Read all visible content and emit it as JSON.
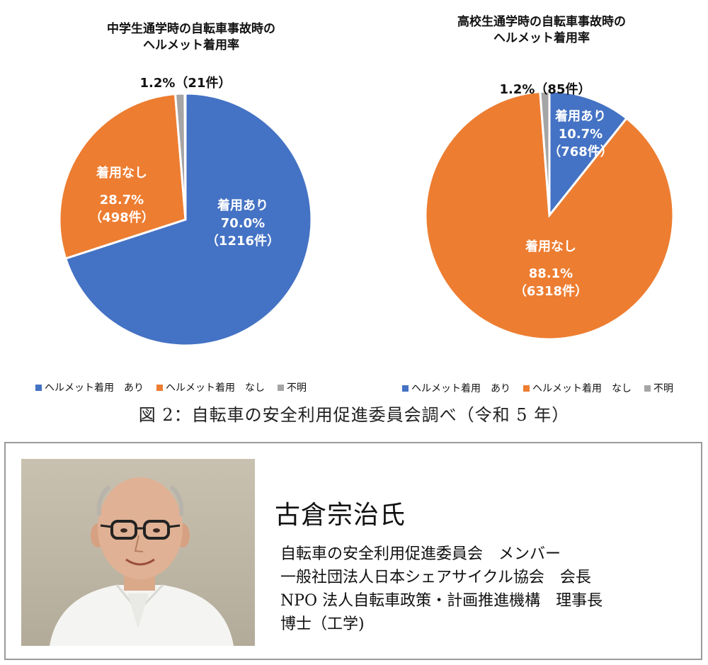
{
  "chart_data": [
    {
      "type": "pie",
      "title_line1": "中学生通学時の自転車事故時の",
      "title_line2": "ヘルメット着用率",
      "slices": [
        {
          "label": "着用あり",
          "percent": 70.0,
          "percent_text": "70.0%",
          "count_text": "（1216件）",
          "color": "#4472C4"
        },
        {
          "label": "着用なし",
          "percent": 28.7,
          "percent_text": "28.7%",
          "count_text": "（498件）",
          "color": "#ED7D31"
        },
        {
          "label": "",
          "percent": 1.2,
          "percent_text": "1.2%",
          "count_text": "（21件）",
          "color": "#A5A5A5"
        }
      ],
      "small_label": "1.2%（21件）",
      "legend": [
        "ヘルメット着用　あり",
        "ヘルメット着用　なし",
        "不明"
      ]
    },
    {
      "type": "pie",
      "title_line1": "高校生通学時の自転車事故時の",
      "title_line2": "ヘルメット着用率",
      "slices": [
        {
          "label": "着用あり",
          "percent": 10.7,
          "percent_text": "10.7%",
          "count_text": "（768件）",
          "color": "#4472C4"
        },
        {
          "label": "着用なし",
          "percent": 88.1,
          "percent_text": "88.1%",
          "count_text": "（6318件）",
          "color": "#ED7D31"
        },
        {
          "label": "",
          "percent": 1.2,
          "percent_text": "1.2%",
          "count_text": "（85件）",
          "color": "#A5A5A5"
        }
      ],
      "small_label": "1.2%（85件）",
      "legend": [
        "ヘルメット着用　あり",
        "ヘルメット着用　なし",
        "不明"
      ]
    }
  ],
  "caption": "図 2：自転車の安全利用促進委員会調べ（令和 5 年）",
  "profile": {
    "name": "古倉宗治氏",
    "lines": [
      "自転車の安全利用促進委員会　メンバー",
      "一般社団法人日本シェアサイクル協会　会長",
      "NPO 法人自転車政策・計画推進機構　理事長",
      "博士（工学)"
    ]
  }
}
